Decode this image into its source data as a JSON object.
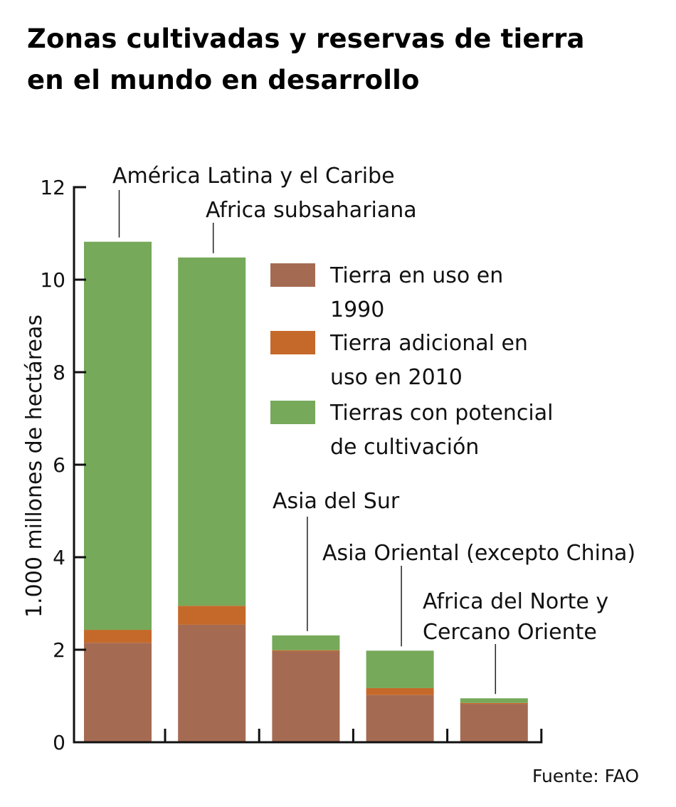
{
  "title_line1": "Zonas cultivadas y reservas de tierra",
  "title_line2": "en el mundo en desarrollo",
  "source": "Fuente: FAO",
  "chart_data": {
    "type": "bar",
    "stacked": true,
    "title": "Zonas cultivadas y reservas de tierra en el mundo en desarrollo",
    "xlabel": "",
    "ylabel": "1.000 millones de hectáreas",
    "ylim": [
      0,
      12
    ],
    "yticks": [
      "0",
      "2",
      "4",
      "6",
      "8",
      "10",
      "12"
    ],
    "grid": false,
    "legend_position": "right",
    "categories": [
      [
        "América Latina y el Caribe"
      ],
      [
        "Africa subsahariana"
      ],
      [
        "Asia del Sur"
      ],
      [
        "Asia Oriental (excepto China)"
      ],
      [
        "Africa del Norte y",
        "Cercano Oriente"
      ]
    ],
    "series": [
      {
        "name": [
          "Tierra en uso en",
          "1990"
        ],
        "color": "#a56b52",
        "values": [
          2.15,
          2.54,
          1.97,
          1.02,
          0.83
        ]
      },
      {
        "name": [
          "Tierra adicional en",
          "uso en 2010"
        ],
        "color": "#c5692a",
        "values": [
          0.28,
          0.41,
          0.02,
          0.15,
          0.02
        ]
      },
      {
        "name": [
          "Tierras con potencial",
          "de cultivación"
        ],
        "color": "#76a95a",
        "values": [
          8.39,
          7.53,
          0.32,
          0.81,
          0.1
        ]
      }
    ]
  }
}
